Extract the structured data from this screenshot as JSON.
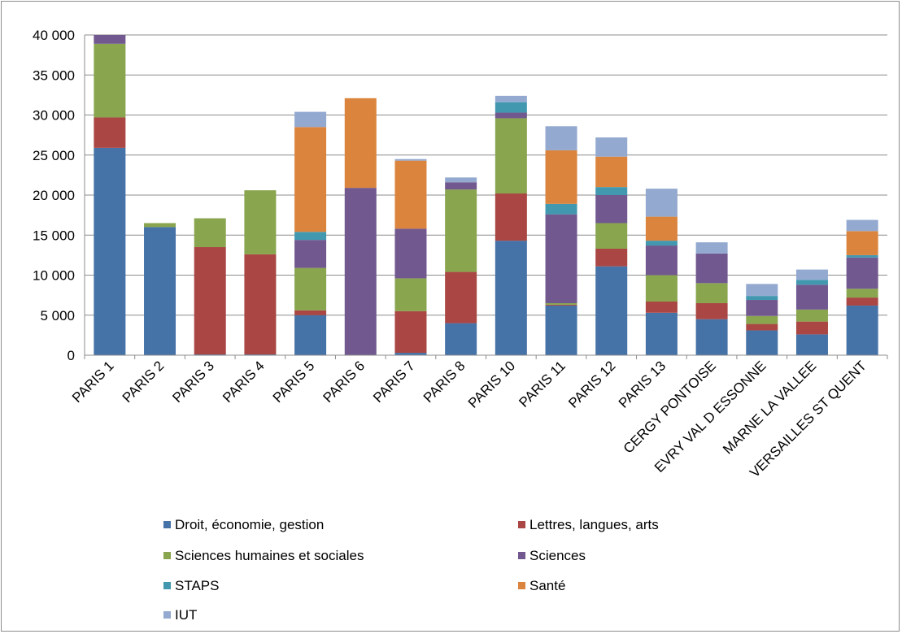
{
  "chart_data": {
    "type": "bar",
    "stacked": true,
    "title": "",
    "xlabel": "",
    "ylabel": "",
    "ylim": [
      0,
      40000
    ],
    "y_ticks": [
      0,
      5000,
      10000,
      15000,
      20000,
      25000,
      30000,
      35000,
      40000
    ],
    "y_tick_labels": [
      "0",
      "5 000",
      "10 000",
      "15 000",
      "20 000",
      "25 000",
      "30 000",
      "35 000",
      "40 000"
    ],
    "grid": "horizontal",
    "legend_position": "bottom",
    "categories": [
      "PARIS 1",
      "PARIS 2",
      "PARIS 3",
      "PARIS 4",
      "PARIS 5",
      "PARIS 6",
      "PARIS 7",
      "PARIS 8",
      "PARIS 10",
      "PARIS 11",
      "PARIS 12",
      "PARIS 13",
      "CERGY PONTOISE",
      "EVRY VAL D ESSONNE",
      "MARNE LA VALLEE",
      "VERSAILLES ST QUENT"
    ],
    "series": [
      {
        "name": "Droit, économie, gestion",
        "color": "#4572A7",
        "values": [
          25900,
          16000,
          100,
          100,
          5000,
          0,
          300,
          4000,
          14300,
          6200,
          11100,
          5300,
          4500,
          3100,
          2600,
          6200
        ]
      },
      {
        "name": "Lettres, langues, arts",
        "color": "#AA4643",
        "values": [
          3800,
          0,
          13400,
          12500,
          600,
          0,
          5200,
          6400,
          5900,
          100,
          2200,
          1400,
          2000,
          800,
          1600,
          1000
        ]
      },
      {
        "name": "Sciences humaines et sociales",
        "color": "#89A54E",
        "values": [
          9200,
          500,
          3600,
          8000,
          5300,
          0,
          4100,
          10300,
          9400,
          200,
          3200,
          3300,
          2500,
          1000,
          1500,
          1100
        ]
      },
      {
        "name": "Sciences",
        "color": "#71588F",
        "values": [
          1100,
          0,
          0,
          0,
          3500,
          20900,
          6200,
          900,
          700,
          11100,
          3500,
          3700,
          3700,
          2000,
          3100,
          3900
        ]
      },
      {
        "name": "STAPS",
        "color": "#4198AF",
        "values": [
          0,
          0,
          0,
          0,
          1000,
          0,
          0,
          0,
          1300,
          1300,
          1000,
          600,
          0,
          500,
          600,
          300
        ]
      },
      {
        "name": "Santé",
        "color": "#DB843D",
        "values": [
          0,
          0,
          0,
          0,
          13100,
          11200,
          8500,
          0,
          0,
          6700,
          3800,
          3000,
          0,
          0,
          0,
          3000
        ]
      },
      {
        "name": "IUT",
        "color": "#93A9CF",
        "values": [
          0,
          0,
          0,
          0,
          1900,
          0,
          200,
          600,
          800,
          3000,
          2400,
          3500,
          1400,
          1500,
          1300,
          1400
        ]
      }
    ]
  }
}
